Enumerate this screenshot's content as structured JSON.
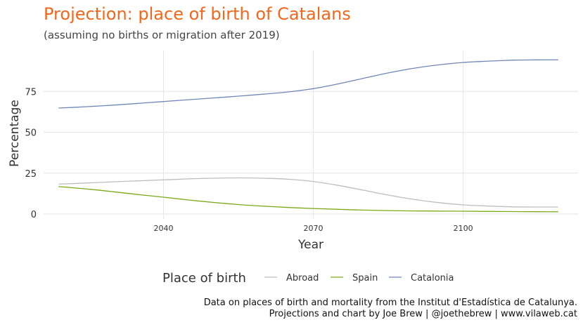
{
  "title": "Projection: place of birth of Catalans",
  "subtitle": "(assuming no births or migration after 2019)",
  "caption": [
    "Data on places of birth and mortality from the Institut d'Estadística de Catalunya.",
    "Projections and chart by Joe Brew | @joethebrew | www.vilaweb.cat"
  ],
  "colors": {
    "title": "#f4661b",
    "grid": "#e6e6e6",
    "text": "#333333"
  },
  "chart_data": {
    "type": "line",
    "xlabel": "Year",
    "ylabel": "Percentage",
    "xlim": [
      2016,
      2123
    ],
    "ylim": [
      -3,
      100
    ],
    "x_ticks": [
      2040,
      2070,
      2100
    ],
    "y_ticks": [
      0,
      25,
      50,
      75
    ],
    "grid": true,
    "legend": {
      "title": "Place of birth",
      "position": "bottom"
    },
    "series": [
      {
        "name": "Abroad",
        "color": "#bdbdbd",
        "x": [
          2019,
          2025,
          2030,
          2035,
          2040,
          2045,
          2050,
          2055,
          2060,
          2065,
          2070,
          2075,
          2080,
          2085,
          2090,
          2095,
          2100,
          2105,
          2110,
          2115,
          2119
        ],
        "y": [
          18.3,
          19,
          19.7,
          20.3,
          20.9,
          21.5,
          21.9,
          22.1,
          21.9,
          21.3,
          19.9,
          17.5,
          14.6,
          11.6,
          9,
          7,
          5.6,
          4.9,
          4.4,
          4.3,
          4.3
        ]
      },
      {
        "name": "Spain",
        "color": "#7aaa19",
        "x": [
          2019,
          2025,
          2030,
          2035,
          2040,
          2045,
          2050,
          2055,
          2060,
          2065,
          2070,
          2075,
          2080,
          2085,
          2090,
          2095,
          2100,
          2105,
          2110,
          2115,
          2119
        ],
        "y": [
          16.8,
          15.2,
          13.6,
          11.9,
          10.3,
          8.6,
          7.1,
          5.8,
          4.8,
          4,
          3.4,
          2.9,
          2.4,
          2.1,
          1.9,
          1.8,
          1.7,
          1.6,
          1.5,
          1.4,
          1.4
        ]
      },
      {
        "name": "Catalonia",
        "color": "#6f87b8",
        "x": [
          2019,
          2025,
          2030,
          2035,
          2040,
          2045,
          2050,
          2055,
          2060,
          2065,
          2070,
          2075,
          2080,
          2085,
          2090,
          2095,
          2100,
          2105,
          2110,
          2115,
          2119
        ],
        "y": [
          64.8,
          65.7,
          66.6,
          67.7,
          68.8,
          69.9,
          71,
          72.1,
          73.3,
          74.7,
          76.7,
          79.6,
          83,
          86.3,
          89.1,
          91.2,
          92.7,
          93.5,
          94.1,
          94.3,
          94.3
        ]
      }
    ]
  }
}
